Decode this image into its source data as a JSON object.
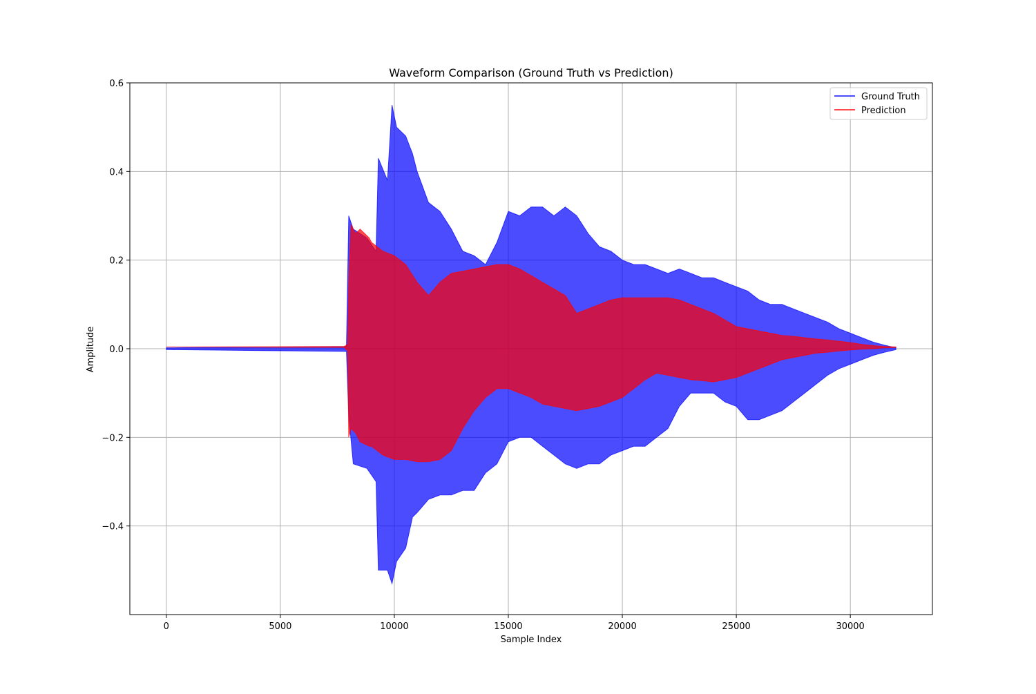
{
  "chart_data": {
    "type": "area",
    "title": "Waveform Comparison (Ground Truth vs Prediction)",
    "xlabel": "Sample Index",
    "ylabel": "Amplitude",
    "xlim": [
      -1600,
      33600
    ],
    "ylim": [
      -0.6,
      0.6
    ],
    "x_ticks": [
      0,
      5000,
      10000,
      15000,
      20000,
      25000,
      30000
    ],
    "x_tick_labels": [
      "0",
      "5000",
      "10000",
      "15000",
      "20000",
      "25000",
      "30000"
    ],
    "y_ticks": [
      0.6,
      0.4,
      0.2,
      0.0,
      -0.2,
      -0.4
    ],
    "y_tick_labels": [
      "0.6",
      "0.4",
      "0.2",
      "0.0",
      "−0.2",
      "−0.4"
    ],
    "grid": true,
    "legend_position": "top-right",
    "series": [
      {
        "name": "Ground Truth",
        "color": "#0000ff",
        "alpha": 0.7,
        "envelope": {
          "x": [
            0,
            7900,
            8000,
            8200,
            8800,
            9200,
            9300,
            9700,
            9900,
            10100,
            10500,
            10800,
            11000,
            11500,
            12000,
            12500,
            13000,
            13500,
            14000,
            14500,
            15000,
            15500,
            16000,
            16500,
            17000,
            17500,
            18000,
            18500,
            19000,
            19500,
            20000,
            20500,
            21000,
            21500,
            22000,
            22500,
            23000,
            23500,
            24000,
            24500,
            25000,
            25500,
            26000,
            26500,
            27000,
            27500,
            28000,
            28500,
            29000,
            29500,
            30000,
            30500,
            31000,
            31500,
            32000
          ],
          "upper": [
            0.002,
            0.005,
            0.3,
            0.27,
            0.25,
            0.22,
            0.43,
            0.38,
            0.55,
            0.5,
            0.48,
            0.44,
            0.4,
            0.33,
            0.31,
            0.27,
            0.22,
            0.21,
            0.19,
            0.24,
            0.31,
            0.3,
            0.32,
            0.32,
            0.3,
            0.32,
            0.3,
            0.26,
            0.23,
            0.22,
            0.2,
            0.19,
            0.19,
            0.18,
            0.17,
            0.18,
            0.17,
            0.16,
            0.16,
            0.15,
            0.14,
            0.13,
            0.11,
            0.1,
            0.1,
            0.09,
            0.08,
            0.07,
            0.06,
            0.045,
            0.035,
            0.025,
            0.015,
            0.008,
            0.002
          ],
          "lower": [
            -0.002,
            -0.006,
            -0.15,
            -0.26,
            -0.27,
            -0.3,
            -0.5,
            -0.5,
            -0.53,
            -0.48,
            -0.45,
            -0.38,
            -0.37,
            -0.34,
            -0.33,
            -0.33,
            -0.32,
            -0.32,
            -0.28,
            -0.26,
            -0.21,
            -0.2,
            -0.2,
            -0.22,
            -0.24,
            -0.26,
            -0.27,
            -0.26,
            -0.26,
            -0.24,
            -0.23,
            -0.22,
            -0.22,
            -0.2,
            -0.18,
            -0.13,
            -0.1,
            -0.1,
            -0.1,
            -0.12,
            -0.13,
            -0.16,
            -0.16,
            -0.15,
            -0.14,
            -0.12,
            -0.1,
            -0.08,
            -0.06,
            -0.045,
            -0.035,
            -0.025,
            -0.015,
            -0.008,
            -0.002
          ]
        }
      },
      {
        "name": "Prediction",
        "color": "#ff0000",
        "alpha": 0.7,
        "envelope": {
          "x": [
            0,
            7800,
            7950,
            8000,
            8100,
            8300,
            8500,
            8900,
            9000,
            9500,
            10000,
            10500,
            11000,
            11500,
            12000,
            12500,
            13000,
            13500,
            14000,
            14500,
            15000,
            15500,
            16000,
            16500,
            17000,
            17500,
            18000,
            18500,
            19000,
            19500,
            20000,
            20500,
            21000,
            21500,
            22000,
            22500,
            23000,
            23500,
            24000,
            24500,
            25000,
            25500,
            26000,
            26500,
            27000,
            27500,
            28000,
            28500,
            29000,
            29500,
            30000,
            30500,
            31000,
            31500,
            32000
          ],
          "upper": [
            0.004,
            0.005,
            0.01,
            0.15,
            0.28,
            0.26,
            0.27,
            0.25,
            0.24,
            0.22,
            0.21,
            0.19,
            0.15,
            0.12,
            0.15,
            0.17,
            0.175,
            0.18,
            0.185,
            0.19,
            0.19,
            0.18,
            0.165,
            0.15,
            0.135,
            0.12,
            0.08,
            0.09,
            0.1,
            0.11,
            0.115,
            0.115,
            0.115,
            0.115,
            0.115,
            0.11,
            0.1,
            0.09,
            0.08,
            0.065,
            0.05,
            0.045,
            0.04,
            0.035,
            0.03,
            0.028,
            0.025,
            0.022,
            0.02,
            0.017,
            0.014,
            0.01,
            0.007,
            0.005,
            0.004
          ],
          "lower": [
            0.004,
            0.003,
            -0.005,
            -0.2,
            -0.18,
            -0.19,
            -0.21,
            -0.22,
            -0.22,
            -0.24,
            -0.25,
            -0.25,
            -0.255,
            -0.255,
            -0.25,
            -0.23,
            -0.18,
            -0.14,
            -0.11,
            -0.09,
            -0.09,
            -0.1,
            -0.11,
            -0.125,
            -0.13,
            -0.135,
            -0.14,
            -0.135,
            -0.13,
            -0.12,
            -0.11,
            -0.09,
            -0.07,
            -0.055,
            -0.06,
            -0.065,
            -0.07,
            -0.072,
            -0.075,
            -0.07,
            -0.065,
            -0.055,
            -0.045,
            -0.035,
            -0.025,
            -0.02,
            -0.015,
            -0.01,
            -0.008,
            -0.005,
            -0.003,
            -0.001,
            0.0,
            0.002,
            0.003
          ]
        }
      }
    ]
  }
}
